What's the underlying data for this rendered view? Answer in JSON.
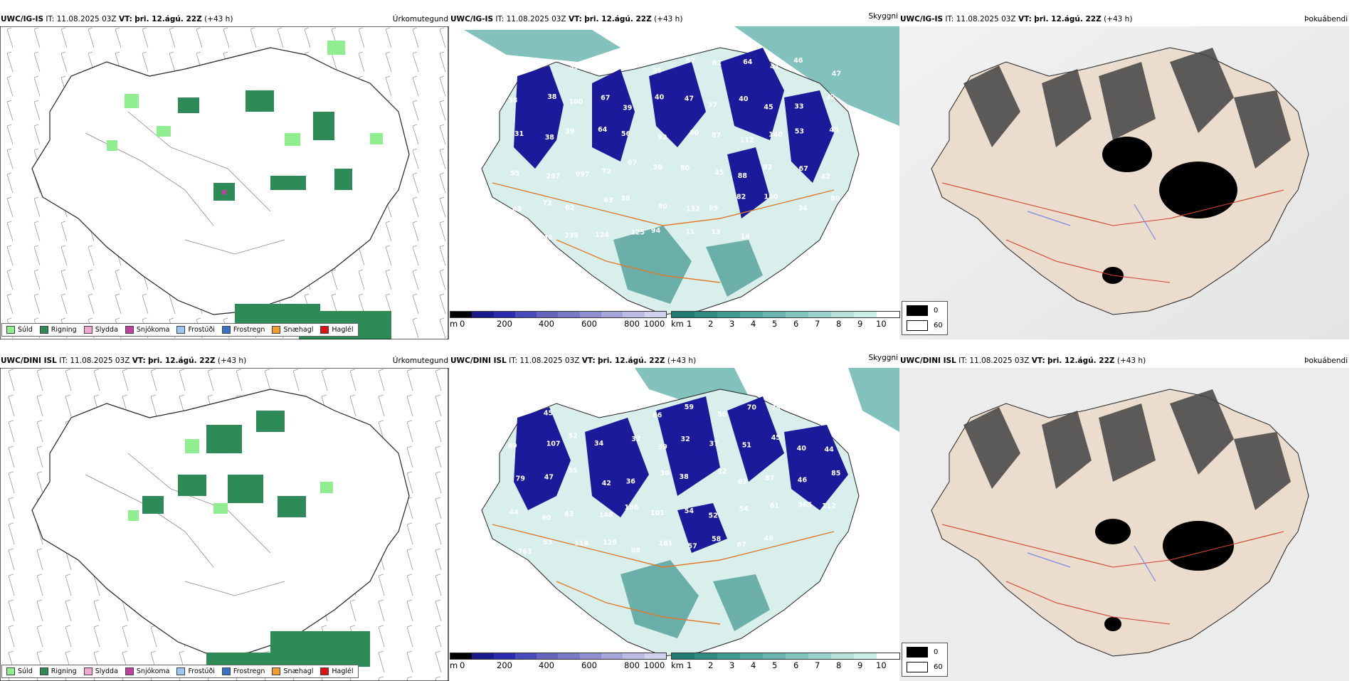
{
  "rows": [
    {
      "model": "UWC/IG-IS",
      "it_label": "IT:",
      "it_value": "11.08.2025 03Z",
      "vt_label": "VT:",
      "vt_value": "þri. 12.ágú. 22Z",
      "lead": "(+43 h)"
    },
    {
      "model": "UWC/DINI ISL",
      "it_label": "IT:",
      "it_value": "11.08.2025 03Z",
      "vt_label": "VT:",
      "vt_value": "þri. 12.ágú. 22Z",
      "lead": "(+43 h)"
    }
  ],
  "panels": {
    "precip_title": "Úrkomutegund",
    "visibility_title": "Skyggni",
    "fog_title": "Þokuábendi"
  },
  "precip_legend": [
    {
      "label": "Súld",
      "color": "#90ee90"
    },
    {
      "label": "Rigning",
      "color": "#2e8b57"
    },
    {
      "label": "Slydda",
      "color": "#f4a6d0"
    },
    {
      "label": "Snjókoma",
      "color": "#c03f9f"
    },
    {
      "label": "Frostúði",
      "color": "#9cc7f0"
    },
    {
      "label": "Frostregn",
      "color": "#3a73c4"
    },
    {
      "label": "Snæhagl",
      "color": "#f0a030"
    },
    {
      "label": "Haglél",
      "color": "#e01010"
    }
  ],
  "height_scale": {
    "unit": "m",
    "ticks": [
      "0",
      "200",
      "400",
      "600",
      "800",
      "1000"
    ],
    "colors": [
      "#000000",
      "#1a1a8c",
      "#2b2bb0",
      "#4a4ab8",
      "#6464bc",
      "#7a7ac6",
      "#9090d0",
      "#a6a6da",
      "#bcbce4",
      "#d2d2ee"
    ]
  },
  "visibility_scale": {
    "unit": "km",
    "ticks": [
      "1",
      "2",
      "3",
      "4",
      "5",
      "6",
      "7",
      "8",
      "9",
      "10"
    ],
    "colors": [
      "#1f7a74",
      "#2f8a84",
      "#3f9a94",
      "#56a8a2",
      "#6cb6b0",
      "#84c4be",
      "#9cd2cc",
      "#b4e0da",
      "#cceee8",
      "#ffffff"
    ]
  },
  "fog_legend": [
    {
      "label": "0",
      "color": "#000000"
    },
    {
      "label": "60",
      "color": "#ffffff"
    }
  ],
  "visibility_labels_top": [
    "50",
    "56",
    "39",
    "60",
    "60",
    "39",
    "57",
    "62",
    "64",
    "41",
    "46",
    "47",
    "38",
    "38",
    "100",
    "67",
    "39",
    "40",
    "47",
    "37",
    "40",
    "45",
    "33",
    "32",
    "31",
    "38",
    "39",
    "64",
    "56",
    "92",
    "80",
    "87",
    "112",
    "140",
    "53",
    "45",
    "55",
    "207",
    "997",
    "72",
    "67",
    "50",
    "80",
    "45",
    "88",
    "92",
    "67",
    "42",
    "43",
    "72",
    "62",
    "63",
    "38",
    "80",
    "132",
    "99",
    "82",
    "180",
    "34",
    "80",
    "102",
    "248",
    "239",
    "124",
    "125",
    "94",
    "11",
    "13",
    "18"
  ],
  "visibility_labels_bottom": [
    "35",
    "45",
    "75",
    "67",
    "60",
    "66",
    "59",
    "56",
    "70",
    "75",
    "38",
    "70",
    "89",
    "107",
    "52",
    "34",
    "32",
    "39",
    "32",
    "37",
    "51",
    "45",
    "40",
    "44",
    "79",
    "47",
    "55",
    "42",
    "36",
    "30",
    "38",
    "32",
    "83",
    "87",
    "46",
    "85",
    "44",
    "60",
    "43",
    "148",
    "156",
    "101",
    "54",
    "52",
    "54",
    "61",
    "365",
    "112",
    "763",
    "53",
    "118",
    "129",
    "98",
    "161",
    "57",
    "58",
    "67",
    "48"
  ]
}
